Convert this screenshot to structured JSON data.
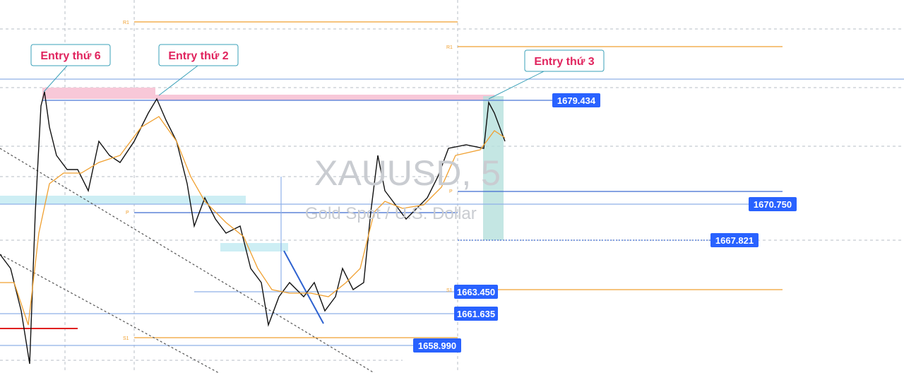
{
  "watermark": {
    "symbol": "XAUUSD, 5",
    "description": "Gold Spot / U.S. Dollar"
  },
  "callouts": [
    "Entry thứ 6",
    "Entry thứ 2",
    "Entry thứ 3"
  ],
  "price_labels": [
    "1679.434",
    "1670.750",
    "1667.821",
    "1663.450",
    "1661.635",
    "1658.990"
  ],
  "pivot_labels": [
    "R1",
    "R1",
    "P",
    "P",
    "S1",
    "S1"
  ]
}
